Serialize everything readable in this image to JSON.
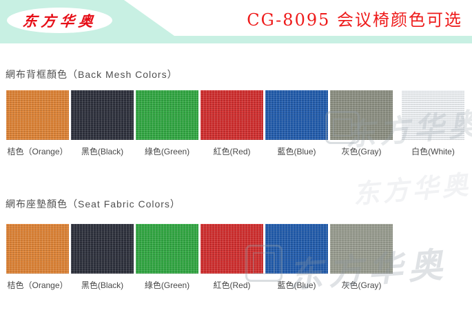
{
  "header": {
    "logo_text": "东方华奥",
    "title": "CG-8095 会议椅颜色可选",
    "banner_color": "#c8f0e3",
    "title_color": "#ee1b1b",
    "logo_text_color": "#e60e17"
  },
  "watermark": {
    "text": "东方华奥"
  },
  "sections": [
    {
      "heading": "網布背框顏色（Back Mesh Colors）",
      "swatches": [
        {
          "name": "orange",
          "label": "桔色（Orange）",
          "color": "#dd8133"
        },
        {
          "name": "black",
          "label": "黑色(Black)",
          "color": "#2b2e3a"
        },
        {
          "name": "green",
          "label": "綠色(Green)",
          "color": "#2fa640"
        },
        {
          "name": "red",
          "label": "紅色(Red)",
          "color": "#d02c2c"
        },
        {
          "name": "blue",
          "label": "藍色(Blue)",
          "color": "#1f5aab"
        },
        {
          "name": "gray",
          "label": "灰色(Gray)",
          "color": "#8b8e81"
        },
        {
          "name": "white",
          "label": "白色(White)",
          "color": "#eef1f4"
        }
      ]
    },
    {
      "heading": "網布座墊顏色（Seat Fabric Colors）",
      "swatches": [
        {
          "name": "orange",
          "label": "桔色（Orange）",
          "color": "#dd8133"
        },
        {
          "name": "black",
          "label": "黑色(Black)",
          "color": "#2b2e3a"
        },
        {
          "name": "green",
          "label": "綠色(Green)",
          "color": "#2fa640"
        },
        {
          "name": "red",
          "label": "紅色(Red)",
          "color": "#d02c2c"
        },
        {
          "name": "blue",
          "label": "藍色(Blue)",
          "color": "#1f5aab"
        },
        {
          "name": "gray",
          "label": "灰色(Gray)",
          "color": "#979b8e"
        }
      ]
    }
  ]
}
